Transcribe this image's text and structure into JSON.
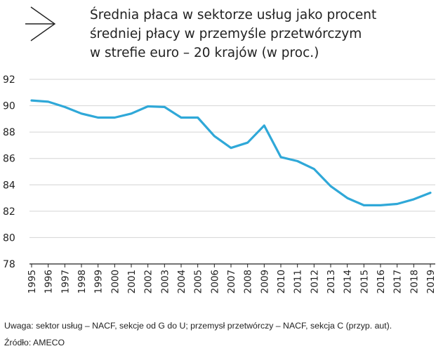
{
  "title_lines": [
    "Średnia płaca w sektorze usług  jako procent",
    "średniej płacy w przemyśle przetwórczym",
    "w strefie euro – 20 krajów (w proc.)"
  ],
  "note": "Uwaga: sektor usług – NACF, sekcje od G do U; przemysł przetwórczy – NACF, sekcja C (przyp. aut).",
  "source": "Źródło: AMECO",
  "colors": {
    "line": "#2fa8d8",
    "grid": "#d4d4d4",
    "axis": "#222222"
  },
  "chart_data": {
    "type": "line",
    "title": "Średnia płaca w sektorze usług  jako procent średniej płacy w przemyśle przetwórczym w strefie euro – 20 krajów (w proc.)",
    "xlabel": "",
    "ylabel": "",
    "x": [
      "1995",
      "1996",
      "1997",
      "1998",
      "1999",
      "2000",
      "2001",
      "2002",
      "2003",
      "2004",
      "2005",
      "2006",
      "2007",
      "2008",
      "2009",
      "2010",
      "2011",
      "2012",
      "2013",
      "2014",
      "2015",
      "2016",
      "2017",
      "2018",
      "2019"
    ],
    "series": [
      {
        "values": [
          90.4,
          90.3,
          89.9,
          89.4,
          89.1,
          89.1,
          89.4,
          89.95,
          89.9,
          89.1,
          89.1,
          87.7,
          86.8,
          87.2,
          88.5,
          86.1,
          85.8,
          85.2,
          83.9,
          83.0,
          82.45,
          82.45,
          82.55,
          82.9,
          83.4
        ]
      }
    ],
    "ylim": [
      78,
      92
    ],
    "yticks": [
      "78",
      "80",
      "82",
      "84",
      "86",
      "88",
      "90",
      "92"
    ],
    "grid": true,
    "legend": "none"
  }
}
